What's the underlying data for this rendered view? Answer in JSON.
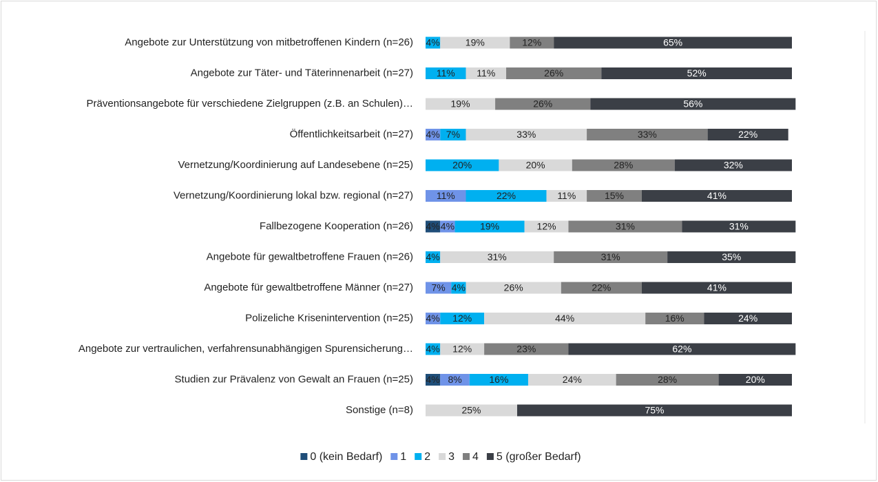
{
  "chart_data": {
    "type": "stacked-bar-horizontal",
    "categories": [
      "Angebote zur Unterstützung von mitbetroffenen Kindern (n=26)",
      "Angebote zur Täter- und Täterinnenarbeit (n=27)",
      "Präventionsangebote für verschiedene Zielgruppen (z.B. an Schulen)…",
      "Öffentlichkeitsarbeit (n=27)",
      "Vernetzung/Koordinierung auf Landesebene (n=25)",
      "Vernetzung/Koordinierung lokal bzw. regional (n=27)",
      "Fallbezogene Kooperation (n=26)",
      "Angebote für gewaltbetroffene Frauen (n=26)",
      "Angebote für gewaltbetroffene Männer (n=27)",
      "Polizeliche Krisenintervention (n=25)",
      "Angebote zur vertraulichen, verfahrensunabhängigen Spurensicherung…",
      "Studien zur Prävalenz von Gewalt an Frauen (n=25)",
      "Sonstige (n=8)"
    ],
    "xlim": [
      0,
      100
    ],
    "series": [
      {
        "name": "0 (kein Bedarf)",
        "color": "#1f4e79",
        "label_color": "#222",
        "values": [
          0,
          0,
          0,
          0,
          0,
          0,
          4,
          0,
          0,
          0,
          0,
          4,
          0
        ],
        "value_labels": [
          null,
          null,
          null,
          null,
          null,
          null,
          "4%",
          null,
          null,
          null,
          null,
          "4%",
          null
        ]
      },
      {
        "name": "1",
        "color": "#6f93e8",
        "label_color": "#222",
        "values": [
          0,
          0,
          0,
          4,
          0,
          11,
          4,
          0,
          7,
          4,
          0,
          8,
          0
        ],
        "value_labels": [
          null,
          null,
          null,
          "4%",
          null,
          "11%",
          "4%",
          null,
          "7%",
          "4%",
          null,
          "8%",
          null
        ]
      },
      {
        "name": "2",
        "color": "#00b0f0",
        "label_color": "#222",
        "values": [
          4,
          11,
          0,
          7,
          20,
          22,
          19,
          4,
          4,
          12,
          4,
          16,
          0
        ],
        "value_labels": [
          "4%",
          "11%",
          null,
          "7%",
          "20%",
          "22%",
          "19%",
          "4%",
          "4%",
          "12%",
          "4%",
          "16%",
          null
        ]
      },
      {
        "name": "3",
        "color": "#d9d9d9",
        "label_color": "#222",
        "values": [
          19,
          11,
          19,
          33,
          20,
          11,
          12,
          31,
          26,
          44,
          12,
          24,
          25
        ],
        "value_labels": [
          "19%",
          "11%",
          "19%",
          "33%",
          "20%",
          "11%",
          "12%",
          "31%",
          "26%",
          "44%",
          "12%",
          "24%",
          "25%"
        ]
      },
      {
        "name": "4",
        "color": "#808080",
        "label_color": "#222",
        "values": [
          12,
          26,
          26,
          33,
          28,
          15,
          31,
          31,
          22,
          16,
          23,
          28,
          0
        ],
        "value_labels": [
          "12%",
          "26%",
          "26%",
          "33%",
          "28%",
          "15%",
          "31%",
          "31%",
          "22%",
          "16%",
          "23%",
          "28%",
          null
        ]
      },
      {
        "name": "5 (großer Bedarf)",
        "color": "#3b3f46",
        "label_color": "#fff",
        "values": [
          65,
          52,
          56,
          22,
          32,
          41,
          31,
          35,
          41,
          24,
          62,
          20,
          75
        ],
        "value_labels": [
          "65%",
          "52%",
          "56%",
          "22%",
          "32%",
          "41%",
          "31%",
          "35%",
          "41%",
          "24%",
          "62%",
          "20%",
          "75%"
        ]
      }
    ]
  }
}
